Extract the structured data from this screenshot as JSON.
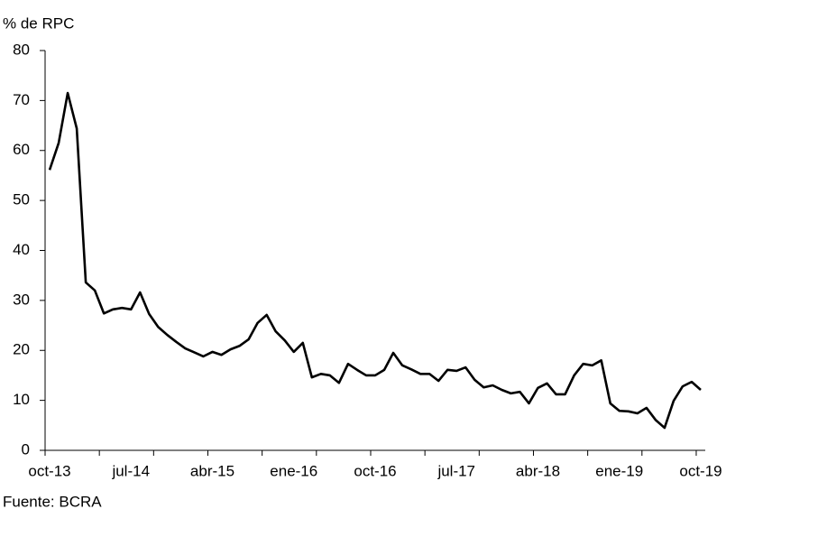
{
  "chart_data": {
    "type": "line",
    "y_label": "% de RPC",
    "source": "Fuente: BCRA",
    "categories": [
      "oct-13",
      null,
      null,
      null,
      null,
      null,
      null,
      null,
      null,
      "jul-14",
      null,
      null,
      null,
      null,
      null,
      null,
      null,
      null,
      "abr-15",
      null,
      null,
      null,
      null,
      null,
      null,
      null,
      null,
      "ene-16",
      null,
      null,
      null,
      null,
      null,
      null,
      null,
      null,
      "oct-16",
      null,
      null,
      null,
      null,
      null,
      null,
      null,
      null,
      "jul-17",
      null,
      null,
      null,
      null,
      null,
      null,
      null,
      null,
      "abr-18",
      null,
      null,
      null,
      null,
      null,
      null,
      null,
      null,
      "ene-19",
      null,
      null,
      null,
      null,
      null,
      null,
      null,
      null,
      "oct-19"
    ],
    "values": [
      56.1,
      61.5,
      71.5,
      64.4,
      33.6,
      32,
      27.4,
      28.2,
      28.5,
      28.2,
      31.6,
      27.3,
      24.7,
      23.1,
      21.7,
      20.4,
      19.6,
      18.8,
      19.7,
      19.1,
      20.2,
      20.9,
      22.2,
      25.5,
      27.1,
      23.8,
      22,
      19.7,
      21.5,
      14.6,
      15.3,
      15,
      13.5,
      17.3,
      16.1,
      15,
      15,
      16.1,
      19.5,
      17,
      16.2,
      15.3,
      15.3,
      13.9,
      16.1,
      15.9,
      16.6,
      14.1,
      12.6,
      13,
      12.1,
      11.4,
      11.7,
      9.4,
      12.5,
      13.4,
      11.2,
      11.2,
      15,
      17.3,
      17,
      18,
      9.4,
      7.9,
      7.8,
      7.4,
      8.5,
      6.1,
      4.5,
      9.9,
      12.8,
      13.7,
      12.1
    ],
    "color": "#000000",
    "ylim": [
      0,
      80
    ],
    "yticks": [
      0,
      10,
      20,
      30,
      40,
      50,
      60,
      70,
      80
    ]
  }
}
